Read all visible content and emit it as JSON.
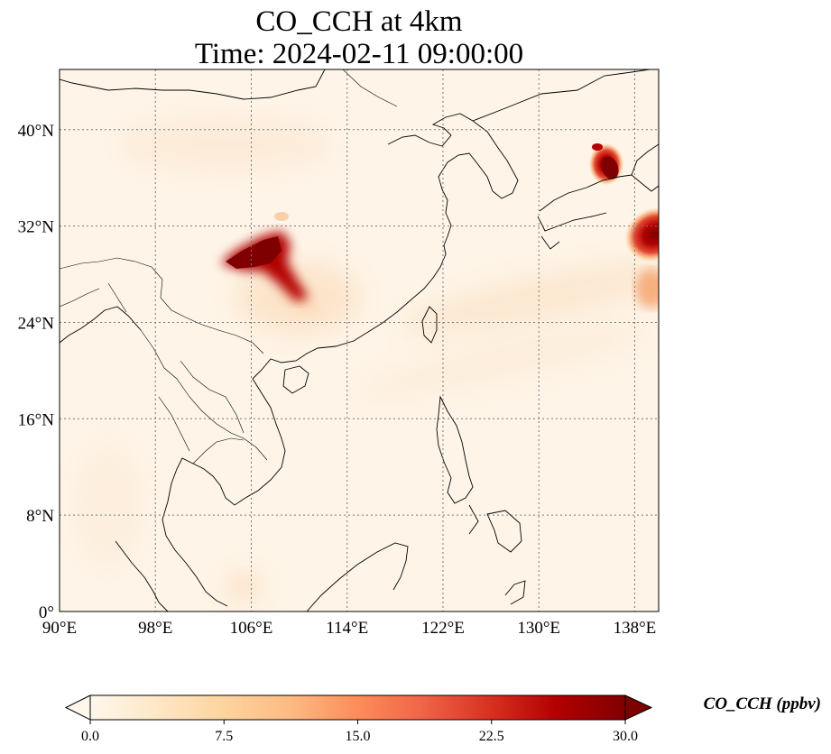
{
  "title_line1": "CO_CCH at 4km",
  "title_line2": "Time: 2024-02-11 09:00:00",
  "map": {
    "variable": "CO_CCH",
    "level": "4km",
    "lon_range": [
      90,
      140
    ],
    "lat_range": [
      0,
      45
    ],
    "lon_ticks": [
      {
        "value": 90,
        "label": "90°E"
      },
      {
        "value": 98,
        "label": "98°E"
      },
      {
        "value": 106,
        "label": "106°E"
      },
      {
        "value": 114,
        "label": "114°E"
      },
      {
        "value": 122,
        "label": "122°E"
      },
      {
        "value": 130,
        "label": "130°E"
      },
      {
        "value": 138,
        "label": "138°E"
      }
    ],
    "lat_ticks": [
      {
        "value": 0,
        "label": "0°"
      },
      {
        "value": 8,
        "label": "8°N"
      },
      {
        "value": 16,
        "label": "16°N"
      },
      {
        "value": 24,
        "label": "24°N"
      },
      {
        "value": 32,
        "label": "32°N"
      },
      {
        "value": 40,
        "label": "40°N"
      }
    ],
    "grid": "dotted",
    "colormap": "OrRd",
    "plumes": [
      {
        "name": "sichuan-basin",
        "lon": 107.0,
        "lat": 29.5,
        "peak_ppbv": 30
      },
      {
        "name": "japan-sea-coast",
        "lon": 135.5,
        "lat": 37.3,
        "peak_ppbv": 30
      },
      {
        "name": "pacific-east",
        "lon": 139.5,
        "lat": 31.5,
        "peak_ppbv": 22
      }
    ]
  },
  "colorbar": {
    "label": "CO_CCH (ppbv)",
    "min": 0.0,
    "max": 30.0,
    "extend": "both",
    "ticks": [
      "0.0",
      "7.5",
      "15.0",
      "22.5",
      "30.0"
    ],
    "tick_values": [
      0.0,
      7.5,
      15.0,
      22.5,
      30.0
    ]
  }
}
